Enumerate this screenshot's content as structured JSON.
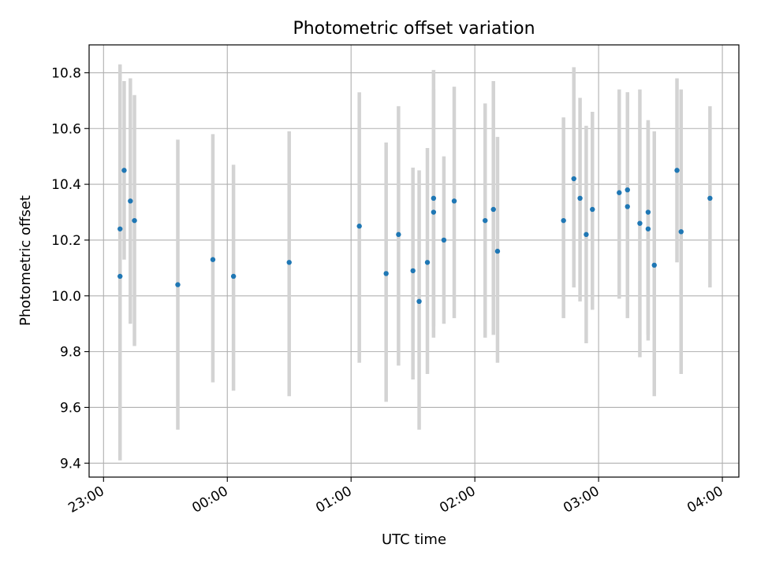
{
  "chart_data": {
    "type": "scatter",
    "title": "Photometric offset variation",
    "xlabel": "UTC time",
    "ylabel": "Photometric offset",
    "xlim": [
      "22:53",
      "04:08"
    ],
    "ylim": [
      9.35,
      10.9
    ],
    "x_ticks": [
      "23:00",
      "00:00",
      "01:00",
      "02:00",
      "03:00",
      "04:00"
    ],
    "y_ticks": [
      "9.4",
      "9.6",
      "9.8",
      "10.0",
      "10.2",
      "10.4",
      "10.6",
      "10.8"
    ],
    "grid": true,
    "point_color": "#1f77b4",
    "errorbar_color": "#d3d3d3",
    "points": [
      {
        "x": "23:08",
        "y": 10.07,
        "low": 9.41,
        "high": 10.74
      },
      {
        "x": "23:08",
        "y": 10.24,
        "low": 9.64,
        "high": 10.83
      },
      {
        "x": "23:10",
        "y": 10.45,
        "low": 10.13,
        "high": 10.77
      },
      {
        "x": "23:13",
        "y": 10.34,
        "low": 9.9,
        "high": 10.78
      },
      {
        "x": "23:15",
        "y": 10.27,
        "low": 9.82,
        "high": 10.72
      },
      {
        "x": "23:36",
        "y": 10.04,
        "low": 9.52,
        "high": 10.56
      },
      {
        "x": "23:53",
        "y": 10.13,
        "low": 9.69,
        "high": 10.58
      },
      {
        "x": "00:03",
        "y": 10.07,
        "low": 9.66,
        "high": 10.47
      },
      {
        "x": "00:30",
        "y": 10.12,
        "low": 9.64,
        "high": 10.59
      },
      {
        "x": "01:04",
        "y": 10.25,
        "low": 9.76,
        "high": 10.73
      },
      {
        "x": "01:17",
        "y": 10.08,
        "low": 9.62,
        "high": 10.55
      },
      {
        "x": "01:23",
        "y": 10.22,
        "low": 9.75,
        "high": 10.68
      },
      {
        "x": "01:30",
        "y": 10.09,
        "low": 9.7,
        "high": 10.46
      },
      {
        "x": "01:33",
        "y": 9.98,
        "low": 9.52,
        "high": 10.45
      },
      {
        "x": "01:37",
        "y": 10.12,
        "low": 9.72,
        "high": 10.53
      },
      {
        "x": "01:40",
        "y": 10.35,
        "low": 9.89,
        "high": 10.81
      },
      {
        "x": "01:40",
        "y": 10.3,
        "low": 9.85,
        "high": 10.74
      },
      {
        "x": "01:45",
        "y": 10.2,
        "low": 9.9,
        "high": 10.5
      },
      {
        "x": "01:50",
        "y": 10.34,
        "low": 9.92,
        "high": 10.75
      },
      {
        "x": "02:05",
        "y": 10.27,
        "low": 9.85,
        "high": 10.69
      },
      {
        "x": "02:09",
        "y": 10.31,
        "low": 9.86,
        "high": 10.77
      },
      {
        "x": "02:11",
        "y": 10.16,
        "low": 9.76,
        "high": 10.57
      },
      {
        "x": "02:43",
        "y": 10.27,
        "low": 9.92,
        "high": 10.64
      },
      {
        "x": "02:48",
        "y": 10.42,
        "low": 10.03,
        "high": 10.82
      },
      {
        "x": "02:51",
        "y": 10.35,
        "low": 9.98,
        "high": 10.71
      },
      {
        "x": "02:54",
        "y": 10.22,
        "low": 9.83,
        "high": 10.61
      },
      {
        "x": "02:57",
        "y": 10.31,
        "low": 9.95,
        "high": 10.66
      },
      {
        "x": "03:10",
        "y": 10.37,
        "low": 9.99,
        "high": 10.74
      },
      {
        "x": "03:14",
        "y": 10.38,
        "low": 10.04,
        "high": 10.73
      },
      {
        "x": "03:14",
        "y": 10.32,
        "low": 9.92,
        "high": 10.73
      },
      {
        "x": "03:20",
        "y": 10.26,
        "low": 9.78,
        "high": 10.74
      },
      {
        "x": "03:24",
        "y": 10.3,
        "low": 9.84,
        "high": 10.63
      },
      {
        "x": "03:24",
        "y": 10.24,
        "low": 9.86,
        "high": 10.62
      },
      {
        "x": "03:27",
        "y": 10.11,
        "low": 9.64,
        "high": 10.59
      },
      {
        "x": "03:38",
        "y": 10.45,
        "low": 10.12,
        "high": 10.78
      },
      {
        "x": "03:40",
        "y": 10.23,
        "low": 9.72,
        "high": 10.74
      },
      {
        "x": "03:54",
        "y": 10.35,
        "low": 10.03,
        "high": 10.68
      }
    ]
  }
}
